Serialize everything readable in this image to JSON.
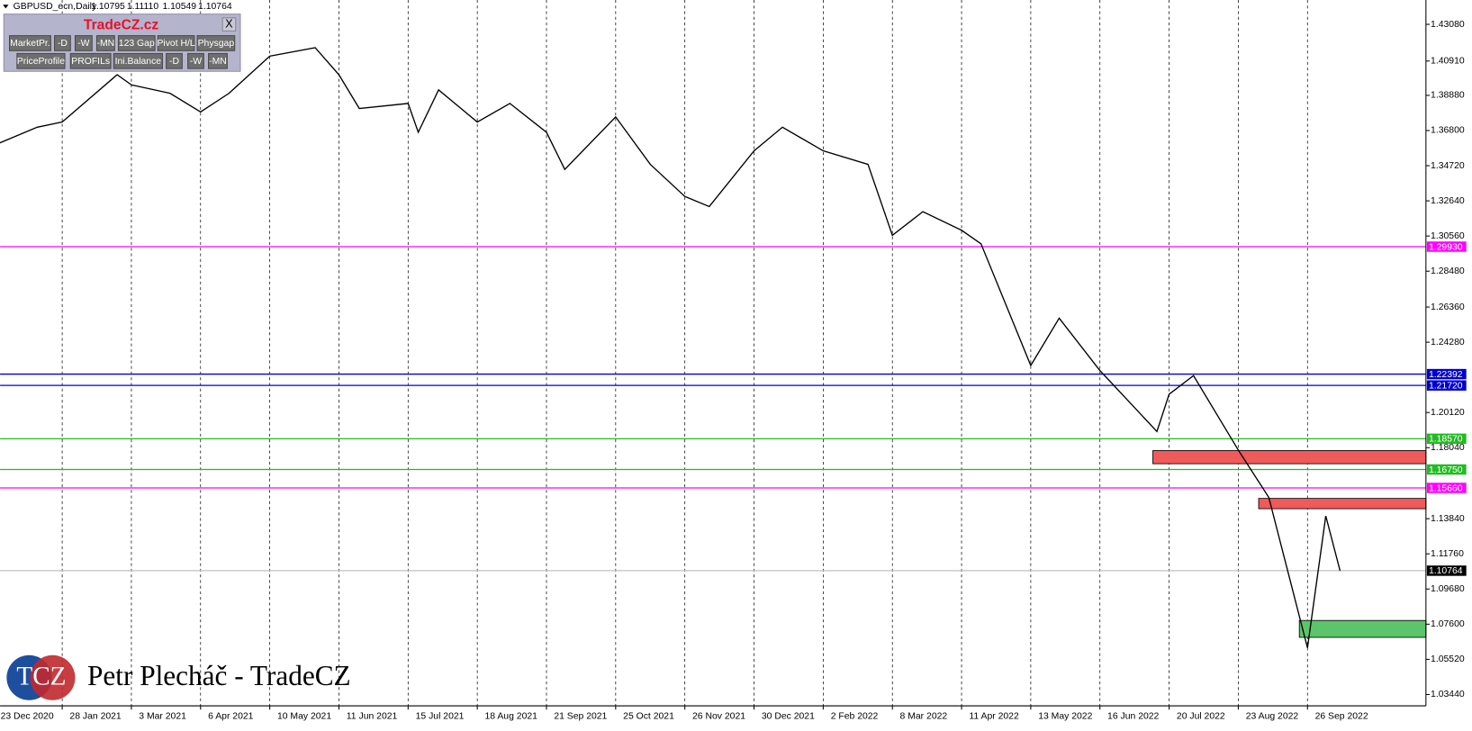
{
  "header": {
    "symbol": "GBPUSD_ecn,Daily",
    "ohlc": [
      "1.10795",
      "1.11110",
      "1.10549",
      "1.10764"
    ]
  },
  "panel": {
    "title": "TradeCZ.cz",
    "close": "X",
    "row1": [
      "MarketPr.",
      "-D",
      "-W",
      "-MN",
      "123 Gap",
      "Pivot H/L",
      "Physgap"
    ],
    "row2": [
      "PriceProfile",
      "PROFILs",
      "Ini.Balance",
      "-D",
      "-W",
      "-MN"
    ]
  },
  "watermark": {
    "logo": "TCZ",
    "text": "Petr Plecháč - TradeCZ"
  },
  "chart_data": {
    "type": "line",
    "color": "#000000",
    "x": [
      "2020-12-23",
      "2021-01-15",
      "2021-01-28",
      "2021-02-24",
      "2021-03-03",
      "2021-03-22",
      "2021-04-06",
      "2021-04-20",
      "2021-05-10",
      "2021-05-31",
      "2021-06-11",
      "2021-06-21",
      "2021-07-15",
      "2021-07-20",
      "2021-07-30",
      "2021-08-18",
      "2021-09-03",
      "2021-09-21",
      "2021-09-30",
      "2021-10-25",
      "2021-11-10",
      "2021-11-26",
      "2021-12-08",
      "2021-12-30",
      "2022-01-13",
      "2022-02-02",
      "2022-02-24",
      "2022-03-08",
      "2022-03-23",
      "2022-04-11",
      "2022-04-20",
      "2022-05-13",
      "2022-05-27",
      "2022-06-16",
      "2022-07-14",
      "2022-07-20",
      "2022-08-01",
      "2022-08-23",
      "2022-09-07",
      "2022-09-26",
      "2022-10-05",
      "2022-10-12"
    ],
    "values": [
      1.359,
      1.37,
      1.373,
      1.401,
      1.395,
      1.39,
      1.379,
      1.39,
      1.412,
      1.417,
      1.401,
      1.381,
      1.384,
      1.367,
      1.392,
      1.373,
      1.384,
      1.367,
      1.345,
      1.376,
      1.348,
      1.329,
      1.323,
      1.356,
      1.37,
      1.356,
      1.348,
      1.306,
      1.32,
      1.309,
      1.301,
      1.229,
      1.257,
      1.226,
      1.19,
      1.212,
      1.223,
      1.179,
      1.151,
      1.062,
      1.14,
      1.10764
    ],
    "ylim": [
      1.0277,
      1.4452
    ],
    "yticks": [
      {
        "value": 1.4308,
        "label": "1.43080"
      },
      {
        "value": 1.4091,
        "label": "1.40910"
      },
      {
        "value": 1.3888,
        "label": "1.38880"
      },
      {
        "value": 1.368,
        "label": "1.36800"
      },
      {
        "value": 1.3472,
        "label": "1.34720"
      },
      {
        "value": 1.3264,
        "label": "1.32640"
      },
      {
        "value": 1.3056,
        "label": "1.30560"
      },
      {
        "value": 1.2848,
        "label": "1.28480"
      },
      {
        "value": 1.2636,
        "label": "1.26360"
      },
      {
        "value": 1.2428,
        "label": "1.24280"
      },
      {
        "value": 1.2012,
        "label": "1.20120"
      },
      {
        "value": 1.1804,
        "label": "1.18040"
      },
      {
        "value": 1.1384,
        "label": "1.13840"
      },
      {
        "value": 1.1176,
        "label": "1.11760"
      },
      {
        "value": 1.0968,
        "label": "1.09680"
      },
      {
        "value": 1.076,
        "label": "1.07600"
      },
      {
        "value": 1.0552,
        "label": "1.05520"
      },
      {
        "value": 1.0344,
        "label": "1.03440"
      }
    ],
    "xticks": [
      {
        "value": "2020-12-23",
        "label": "23 Dec 2020"
      },
      {
        "value": "2021-01-28",
        "label": "28 Jan 2021"
      },
      {
        "value": "2021-03-03",
        "label": "3 Mar 2021"
      },
      {
        "value": "2021-04-06",
        "label": "6 Apr 2021"
      },
      {
        "value": "2021-05-10",
        "label": "10 May 2021"
      },
      {
        "value": "2021-06-11",
        "label": "11 Jun 2021"
      },
      {
        "value": "2021-07-15",
        "label": "15 Jul 2021"
      },
      {
        "value": "2021-08-18",
        "label": "18 Aug 2021"
      },
      {
        "value": "2021-09-21",
        "label": "21 Sep 2021"
      },
      {
        "value": "2021-10-25",
        "label": "25 Oct 2021"
      },
      {
        "value": "2021-11-26",
        "label": "26 Nov 2021"
      },
      {
        "value": "2021-12-30",
        "label": "30 Dec 2021"
      },
      {
        "value": "2022-02-02",
        "label": "2 Feb 2022"
      },
      {
        "value": "2022-03-08",
        "label": "8 Mar 2022"
      },
      {
        "value": "2022-04-11",
        "label": "11 Apr 2022"
      },
      {
        "value": "2022-05-13",
        "label": "13 May 2022"
      },
      {
        "value": "2022-06-16",
        "label": "16 Jun 2022"
      },
      {
        "value": "2022-07-20",
        "label": "20 Jul 2022"
      },
      {
        "value": "2022-08-23",
        "label": "23 Aug 2022"
      },
      {
        "value": "2022-09-26",
        "label": "26 Sep 2022"
      }
    ],
    "grid": true,
    "levels": [
      {
        "value": 1.2993,
        "label": "1.29930",
        "color": "#ff00ff"
      },
      {
        "value": 1.22392,
        "label": "1.22392",
        "color": "#0000cc"
      },
      {
        "value": 1.2172,
        "label": "1.21720",
        "color": "#0000cc"
      },
      {
        "value": 1.1857,
        "label": "1.18570",
        "color": "#22bb22"
      },
      {
        "value": 1.1675,
        "label": "1.16750",
        "color": "#22bb22"
      },
      {
        "value": 1.1566,
        "label": "1.15660",
        "color": "#ff00ff"
      },
      {
        "value": 1.10764,
        "label": "1.10764",
        "color": "#000000"
      }
    ],
    "zones": [
      {
        "start": "2022-07-12",
        "low": 1.1709,
        "high": 1.1787,
        "color": "#f05a5a"
      },
      {
        "start": "2022-09-02",
        "low": 1.1443,
        "high": 1.1504,
        "color": "#f05a5a"
      },
      {
        "start": "2022-09-22",
        "low": 1.0682,
        "high": 1.0782,
        "color": "#5cc46a"
      }
    ]
  }
}
